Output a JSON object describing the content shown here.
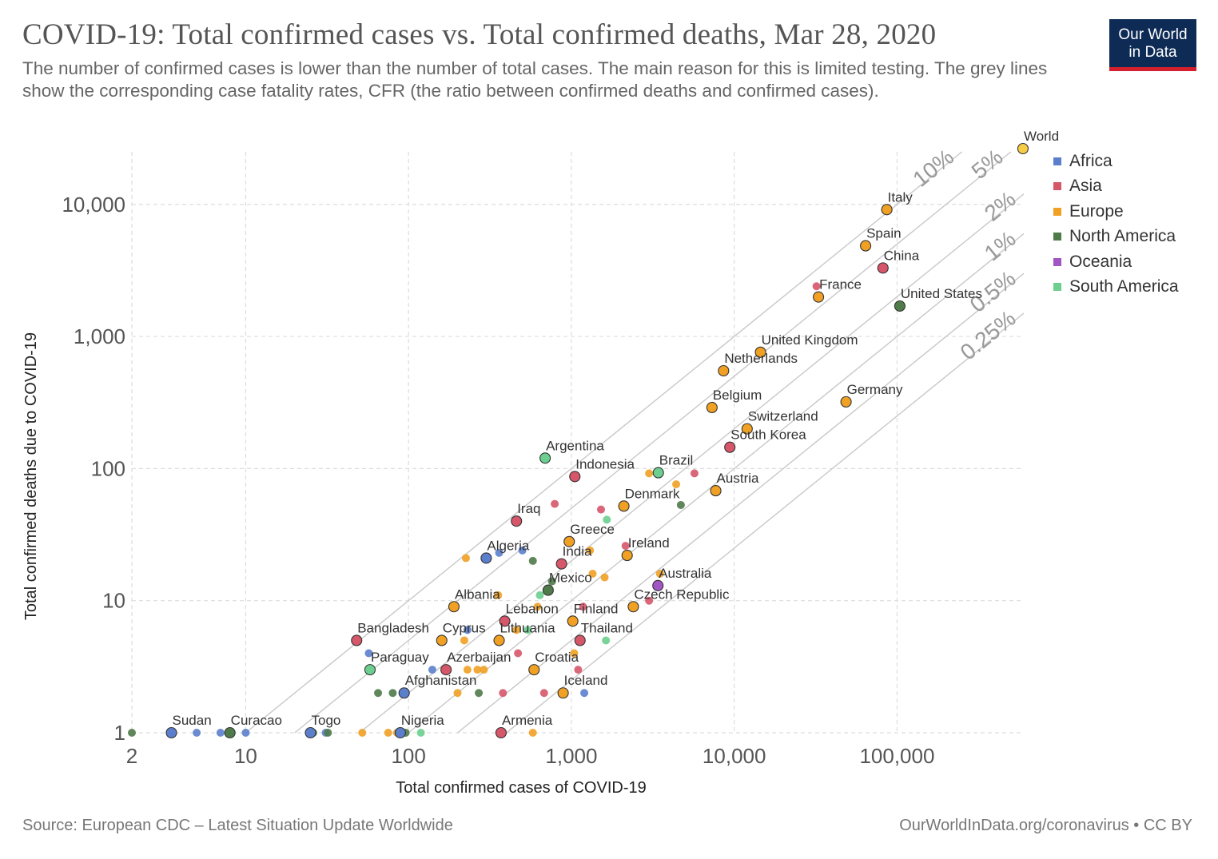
{
  "header": {
    "title": "COVID-19: Total confirmed cases vs. Total confirmed deaths, Mar 28, 2020",
    "subtitle": "The number of confirmed cases is lower than the number of total cases. The main reason for this is limited testing.  The grey lines show the corresponding case fatality rates, CFR (the ratio between confirmed deaths and confirmed cases).",
    "logo_line1": "Our World",
    "logo_line2": "in Data"
  },
  "footer": {
    "source": "Source: European CDC – Latest Situation Update Worldwide",
    "credit": "OurWorldInData.org/coronavirus • CC BY"
  },
  "colors": {
    "Africa": "#5b7fcc",
    "Asia": "#d6566a",
    "Europe": "#f0a023",
    "North America": "#4f7a4a",
    "Oceania": "#a256c4",
    "South America": "#6ccf8f",
    "World": "#f7cc46"
  },
  "chart_data": {
    "type": "scatter",
    "xlabel": "Total confirmed cases of COVID-19",
    "ylabel": "Total confirmed deaths due to COVID-19",
    "xscale": "log",
    "yscale": "log",
    "xlim": [
      2,
      600000
    ],
    "ylim": [
      1,
      25000
    ],
    "x_ticks": [
      2,
      10,
      100,
      1000,
      10000,
      100000
    ],
    "x_tick_labels": [
      "2",
      "10",
      "100",
      "1,000",
      "10,000",
      "100,000"
    ],
    "y_ticks": [
      1,
      10,
      100,
      1000,
      10000
    ],
    "y_tick_labels": [
      "1",
      "10",
      "100",
      "1,000",
      "10,000"
    ],
    "grid": true,
    "legend_position": "right",
    "legend": [
      "Africa",
      "Asia",
      "Europe",
      "North America",
      "Oceania",
      "South America"
    ],
    "cfr_lines": [
      {
        "label": "10%",
        "ratio": 0.1
      },
      {
        "label": "5%",
        "ratio": 0.05
      },
      {
        "label": "2%",
        "ratio": 0.02
      },
      {
        "label": "1%",
        "ratio": 0.01
      },
      {
        "label": "0.5%",
        "ratio": 0.005
      },
      {
        "label": "0.25%",
        "ratio": 0.0025
      }
    ],
    "points": [
      {
        "label": "World",
        "x": 593000,
        "y": 27200,
        "group": "World"
      },
      {
        "label": "Italy",
        "x": 86500,
        "y": 9130,
        "group": "Europe"
      },
      {
        "label": "Spain",
        "x": 64100,
        "y": 4860,
        "group": "Europe"
      },
      {
        "label": "China",
        "x": 81900,
        "y": 3300,
        "group": "Asia"
      },
      {
        "label": "France",
        "x": 32900,
        "y": 1990,
        "group": "Europe"
      },
      {
        "label": "United States",
        "x": 104000,
        "y": 1700,
        "group": "North America"
      },
      {
        "label": "United Kingdom",
        "x": 14500,
        "y": 760,
        "group": "Europe"
      },
      {
        "label": "Netherlands",
        "x": 8600,
        "y": 550,
        "group": "Europe"
      },
      {
        "label": "Germany",
        "x": 48600,
        "y": 320,
        "group": "Europe"
      },
      {
        "label": "Belgium",
        "x": 7300,
        "y": 290,
        "group": "Europe"
      },
      {
        "label": "Switzerland",
        "x": 12000,
        "y": 200,
        "group": "Europe"
      },
      {
        "label": "South Korea",
        "x": 9400,
        "y": 145,
        "group": "Asia"
      },
      {
        "label": "Argentina",
        "x": 690,
        "y": 120,
        "group": "South America"
      },
      {
        "label": "Indonesia",
        "x": 1050,
        "y": 87,
        "group": "Asia"
      },
      {
        "label": "Brazil",
        "x": 3420,
        "y": 93,
        "group": "South America"
      },
      {
        "label": "Austria",
        "x": 7700,
        "y": 68,
        "group": "Europe"
      },
      {
        "label": "Denmark",
        "x": 2100,
        "y": 52,
        "group": "Europe"
      },
      {
        "label": "Iraq",
        "x": 460,
        "y": 40,
        "group": "Asia"
      },
      {
        "label": "Greece",
        "x": 970,
        "y": 28,
        "group": "Europe"
      },
      {
        "label": "Ireland",
        "x": 2200,
        "y": 22,
        "group": "Europe"
      },
      {
        "label": "Algeria",
        "x": 300,
        "y": 21,
        "group": "Africa"
      },
      {
        "label": "India",
        "x": 870,
        "y": 19,
        "group": "Asia"
      },
      {
        "label": "Mexico",
        "x": 720,
        "y": 12,
        "group": "North America"
      },
      {
        "label": "Australia",
        "x": 3400,
        "y": 13,
        "group": "Oceania"
      },
      {
        "label": "Albania",
        "x": 190,
        "y": 9,
        "group": "Europe"
      },
      {
        "label": "Czech Republic",
        "x": 2400,
        "y": 9,
        "group": "Europe"
      },
      {
        "label": "Lebanon",
        "x": 390,
        "y": 7,
        "group": "Asia"
      },
      {
        "label": "Finland",
        "x": 1020,
        "y": 7,
        "group": "Europe"
      },
      {
        "label": "Bangladesh",
        "x": 48,
        "y": 5,
        "group": "Asia"
      },
      {
        "label": "Cyprus",
        "x": 160,
        "y": 5,
        "group": "Europe"
      },
      {
        "label": "Lithuania",
        "x": 360,
        "y": 5,
        "group": "Europe"
      },
      {
        "label": "Thailand",
        "x": 1130,
        "y": 5,
        "group": "Asia"
      },
      {
        "label": "Paraguay",
        "x": 58,
        "y": 3,
        "group": "South America"
      },
      {
        "label": "Azerbaijan",
        "x": 170,
        "y": 3,
        "group": "Asia"
      },
      {
        "label": "Croatia",
        "x": 590,
        "y": 3,
        "group": "Europe"
      },
      {
        "label": "Afghanistan",
        "x": 94,
        "y": 2,
        "group": "Africa"
      },
      {
        "label": "Iceland",
        "x": 890,
        "y": 2,
        "group": "Europe"
      },
      {
        "label": "Sudan",
        "x": 3.5,
        "y": 1,
        "group": "Africa"
      },
      {
        "label": "Curacao",
        "x": 8,
        "y": 1,
        "group": "North America"
      },
      {
        "label": "Togo",
        "x": 25,
        "y": 1,
        "group": "Africa"
      },
      {
        "label": "Nigeria",
        "x": 89,
        "y": 1,
        "group": "Africa"
      },
      {
        "label": "Armenia",
        "x": 370,
        "y": 1,
        "group": "Asia"
      },
      {
        "label": "",
        "x": 2,
        "y": 1,
        "group": "North America"
      },
      {
        "label": "",
        "x": 5,
        "y": 1,
        "group": "Africa"
      },
      {
        "label": "",
        "x": 7,
        "y": 1,
        "group": "Africa"
      },
      {
        "label": "",
        "x": 10,
        "y": 1,
        "group": "Africa"
      },
      {
        "label": "",
        "x": 26,
        "y": 1,
        "group": "North America"
      },
      {
        "label": "",
        "x": 31,
        "y": 1,
        "group": "Africa"
      },
      {
        "label": "",
        "x": 32,
        "y": 1,
        "group": "North America"
      },
      {
        "label": "",
        "x": 52,
        "y": 1,
        "group": "Europe"
      },
      {
        "label": "",
        "x": 75,
        "y": 1,
        "group": "Europe"
      },
      {
        "label": "",
        "x": 85,
        "y": 1,
        "group": "Europe"
      },
      {
        "label": "",
        "x": 96,
        "y": 1,
        "group": "North America"
      },
      {
        "label": "",
        "x": 119,
        "y": 1,
        "group": "South America"
      },
      {
        "label": "",
        "x": 580,
        "y": 1,
        "group": "Europe"
      },
      {
        "label": "",
        "x": 65,
        "y": 2,
        "group": "North America"
      },
      {
        "label": "",
        "x": 80,
        "y": 2,
        "group": "North America"
      },
      {
        "label": "",
        "x": 200,
        "y": 2,
        "group": "Europe"
      },
      {
        "label": "",
        "x": 270,
        "y": 2,
        "group": "North America"
      },
      {
        "label": "",
        "x": 380,
        "y": 2,
        "group": "Asia"
      },
      {
        "label": "",
        "x": 680,
        "y": 2,
        "group": "Asia"
      },
      {
        "label": "",
        "x": 1200,
        "y": 2,
        "group": "Africa"
      },
      {
        "label": "",
        "x": 140,
        "y": 3,
        "group": "Africa"
      },
      {
        "label": "",
        "x": 230,
        "y": 3,
        "group": "Europe"
      },
      {
        "label": "",
        "x": 265,
        "y": 3,
        "group": "Europe"
      },
      {
        "label": "",
        "x": 290,
        "y": 3,
        "group": "Europe"
      },
      {
        "label": "",
        "x": 1100,
        "y": 3,
        "group": "Asia"
      },
      {
        "label": "",
        "x": 57,
        "y": 4,
        "group": "Africa"
      },
      {
        "label": "",
        "x": 470,
        "y": 4,
        "group": "Asia"
      },
      {
        "label": "",
        "x": 1040,
        "y": 4,
        "group": "Europe"
      },
      {
        "label": "",
        "x": 220,
        "y": 5,
        "group": "Europe"
      },
      {
        "label": "",
        "x": 230,
        "y": 6,
        "group": "Africa"
      },
      {
        "label": "",
        "x": 460,
        "y": 6,
        "group": "Europe"
      },
      {
        "label": "",
        "x": 540,
        "y": 6,
        "group": "South America"
      },
      {
        "label": "",
        "x": 1630,
        "y": 5,
        "group": "South America"
      },
      {
        "label": "",
        "x": 620,
        "y": 9,
        "group": "Europe"
      },
      {
        "label": "",
        "x": 1180,
        "y": 9,
        "group": "Asia"
      },
      {
        "label": "",
        "x": 3000,
        "y": 10,
        "group": "Asia"
      },
      {
        "label": "",
        "x": 355,
        "y": 11,
        "group": "Europe"
      },
      {
        "label": "",
        "x": 640,
        "y": 11,
        "group": "South America"
      },
      {
        "label": "",
        "x": 760,
        "y": 14,
        "group": "North America"
      },
      {
        "label": "",
        "x": 1350,
        "y": 16,
        "group": "Europe"
      },
      {
        "label": "",
        "x": 1600,
        "y": 15,
        "group": "Europe"
      },
      {
        "label": "",
        "x": 3500,
        "y": 16,
        "group": "Europe"
      },
      {
        "label": "",
        "x": 225,
        "y": 21,
        "group": "Europe"
      },
      {
        "label": "",
        "x": 360,
        "y": 23,
        "group": "Africa"
      },
      {
        "label": "",
        "x": 500,
        "y": 24,
        "group": "Africa"
      },
      {
        "label": "",
        "x": 1300,
        "y": 24,
        "group": "Europe"
      },
      {
        "label": "",
        "x": 2150,
        "y": 26,
        "group": "Asia"
      },
      {
        "label": "",
        "x": 580,
        "y": 20,
        "group": "North America"
      },
      {
        "label": "",
        "x": 1650,
        "y": 41,
        "group": "South America"
      },
      {
        "label": "",
        "x": 1520,
        "y": 49,
        "group": "Asia"
      },
      {
        "label": "",
        "x": 790,
        "y": 54,
        "group": "Asia"
      },
      {
        "label": "",
        "x": 4700,
        "y": 53,
        "group": "North America"
      },
      {
        "label": "",
        "x": 4400,
        "y": 76,
        "group": "Europe"
      },
      {
        "label": "",
        "x": 3000,
        "y": 92,
        "group": "Europe"
      },
      {
        "label": "",
        "x": 5700,
        "y": 92,
        "group": "Asia"
      },
      {
        "label": "",
        "x": 32000,
        "y": 2400,
        "group": "Asia"
      }
    ]
  }
}
